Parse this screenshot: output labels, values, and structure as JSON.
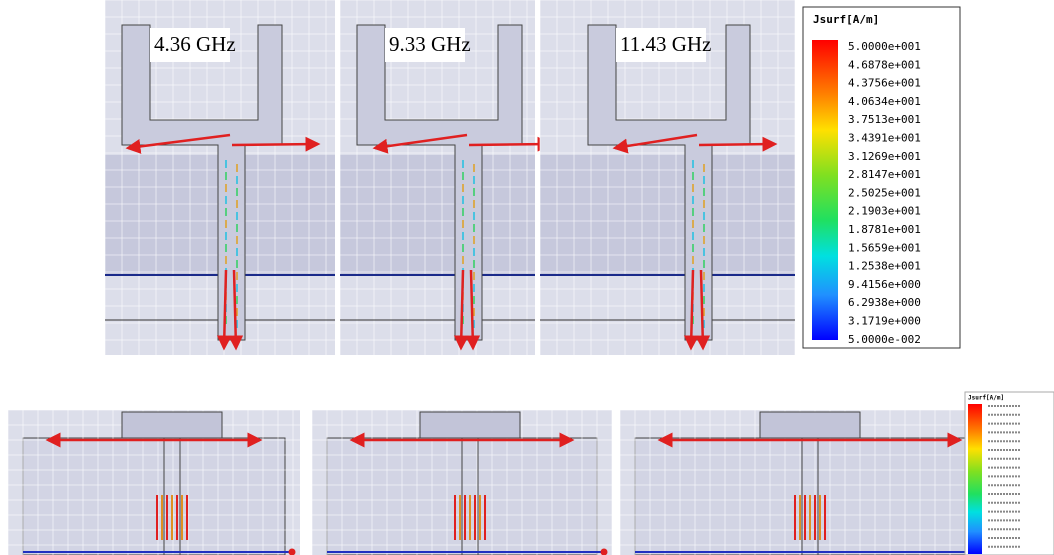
{
  "panels": [
    {
      "label": "4.36 GHz"
    },
    {
      "label": "9.33 GHz"
    },
    {
      "label": "11.43 GHz"
    }
  ],
  "legend": {
    "title": "Jsurf[A/m]",
    "values": [
      "5.0000e+001",
      "4.6878e+001",
      "4.3756e+001",
      "4.0634e+001",
      "3.7513e+001",
      "3.4391e+001",
      "3.1269e+001",
      "2.8147e+001",
      "2.5025e+001",
      "2.1903e+001",
      "1.8781e+001",
      "1.5659e+001",
      "1.2538e+001",
      "9.4156e+000",
      "6.2938e+000",
      "3.1719e+000",
      "5.0000e-002"
    ]
  },
  "small_legend": {
    "title": "Jsurf[A/m]"
  }
}
